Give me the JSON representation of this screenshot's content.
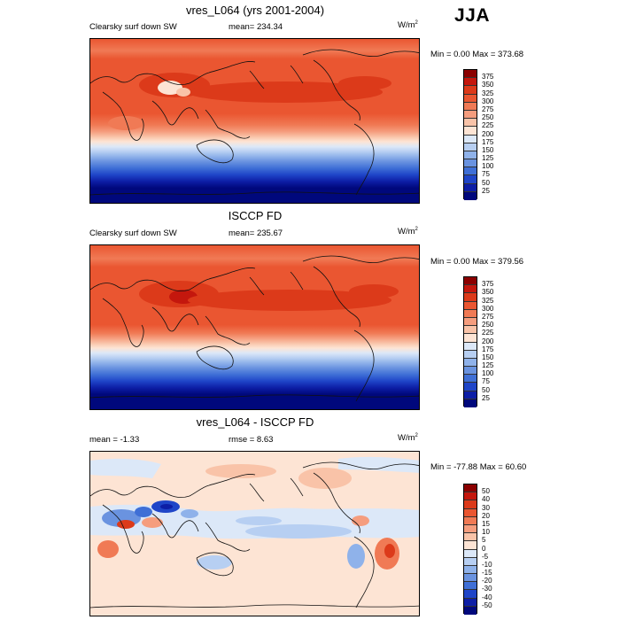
{
  "season": "JJA",
  "panels": [
    {
      "id": "model",
      "title": "vres_L064 (yrs 2001-2004)",
      "left_text": "Clearsky surf down SW",
      "center_text": "mean= 234.34",
      "units_base": "W/m",
      "units_exp": "2",
      "minmax": "Min =   0.00 Max = 373.68",
      "colorbar_labels": [
        "375",
        "350",
        "325",
        "300",
        "275",
        "250",
        "225",
        "200",
        "175",
        "150",
        "125",
        "100",
        "75",
        "50",
        "25"
      ],
      "colorbar_colors": [
        "#8b0000",
        "#c4170d",
        "#dc3a1a",
        "#ea5631",
        "#f07a55",
        "#f59d7e",
        "#f9c3a8",
        "#fde4d4",
        "#dce8f8",
        "#b7cff2",
        "#8fb2ea",
        "#6a93e0",
        "#3f6fd6",
        "#1f45c8",
        "#0d1ea6",
        "#00087c"
      ]
    },
    {
      "id": "obs",
      "title": "ISCCP FD",
      "left_text": "Clearsky surf down SW",
      "center_text": "mean= 235.67",
      "units_base": "W/m",
      "units_exp": "2",
      "minmax": "Min =   0.00 Max = 379.56",
      "colorbar_labels": [
        "375",
        "350",
        "325",
        "300",
        "275",
        "250",
        "225",
        "200",
        "175",
        "150",
        "125",
        "100",
        "75",
        "50",
        "25"
      ],
      "colorbar_colors": [
        "#8b0000",
        "#c4170d",
        "#dc3a1a",
        "#ea5631",
        "#f07a55",
        "#f59d7e",
        "#f9c3a8",
        "#fde4d4",
        "#dce8f8",
        "#b7cff2",
        "#8fb2ea",
        "#6a93e0",
        "#3f6fd6",
        "#1f45c8",
        "#0d1ea6",
        "#00087c"
      ]
    },
    {
      "id": "diff",
      "title": "vres_L064 - ISCCP FD",
      "left_text": "mean =  -1.33",
      "center_text": "rmse =    8.63",
      "units_base": "W/m",
      "units_exp": "2",
      "minmax": "Min = -77.88 Max =  60.60",
      "colorbar_labels": [
        "50",
        "40",
        "30",
        "20",
        "15",
        "10",
        "5",
        "0",
        "-5",
        "-10",
        "-15",
        "-20",
        "-30",
        "-40",
        "-50"
      ],
      "colorbar_colors": [
        "#8b0000",
        "#c4170d",
        "#dc3a1a",
        "#ea5631",
        "#f07a55",
        "#f59d7e",
        "#f9c3a8",
        "#fde4d4",
        "#dce8f8",
        "#b7cff2",
        "#8fb2ea",
        "#6a93e0",
        "#3f6fd6",
        "#1f45c8",
        "#0d1ea6",
        "#00087c"
      ]
    }
  ]
}
